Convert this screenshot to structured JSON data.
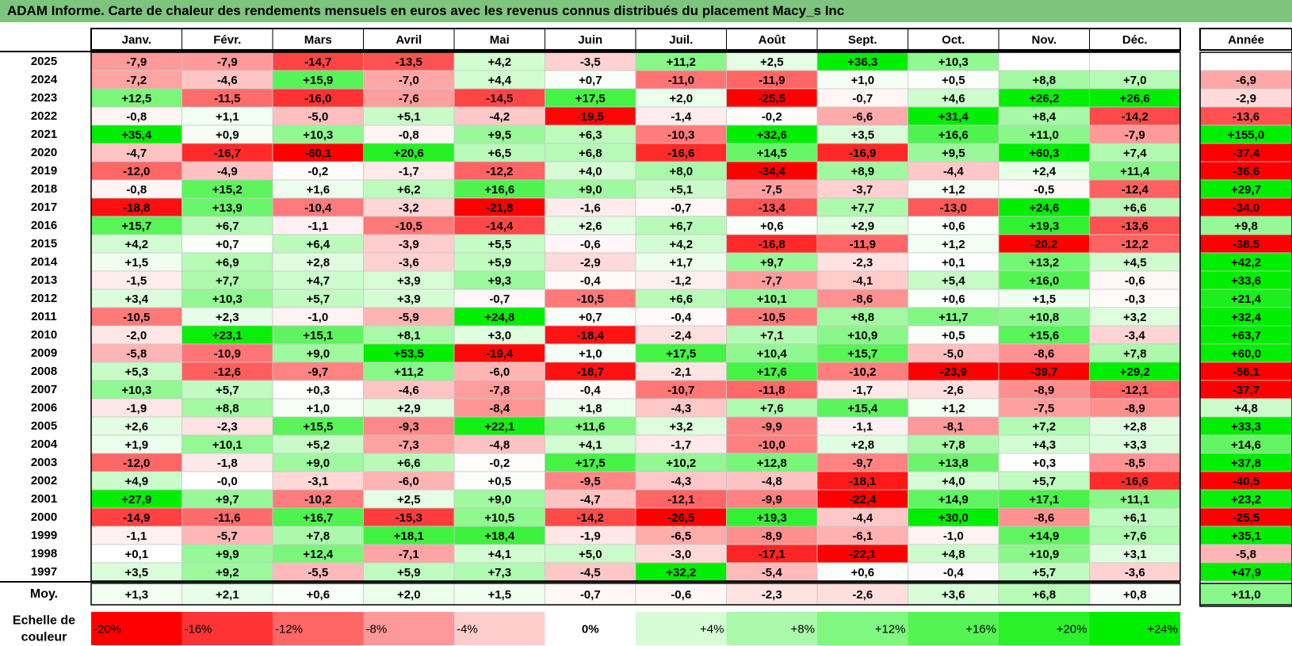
{
  "title": "ADAM Informe. Carte de chaleur des rendements mensuels en euros avec les revenus connus distribués du placement Macy_s Inc",
  "chart_data": {
    "type": "heatmap",
    "months": [
      "Janv.",
      "Févr.",
      "Mars",
      "Avril",
      "Mai",
      "Juin",
      "Juil.",
      "Août",
      "Sept.",
      "Oct.",
      "Nov.",
      "Déc."
    ],
    "year_header": "Année",
    "rows": [
      {
        "year": "2025",
        "values": [
          "-7,9",
          "-7,9",
          "-14,7",
          "-13,5",
          "+4,2",
          "-3,5",
          "+11,2",
          "+2,5",
          "+36,3",
          "+10,3",
          "",
          ""
        ],
        "annual": ""
      },
      {
        "year": "2024",
        "values": [
          "-7,2",
          "-4,6",
          "+15,9",
          "-7,0",
          "+4,4",
          "+0,7",
          "-11,0",
          "-11,9",
          "+1,0",
          "+0,5",
          "+8,8",
          "+7,0"
        ],
        "annual": "-6,9"
      },
      {
        "year": "2023",
        "values": [
          "+12,5",
          "-11,5",
          "-16,0",
          "-7,6",
          "-14,5",
          "+17,5",
          "+2,0",
          "-25,5",
          "-0,7",
          "+4,6",
          "+26,2",
          "+26,6"
        ],
        "annual": "-2,9"
      },
      {
        "year": "2022",
        "values": [
          "-0,8",
          "+1,1",
          "-5,0",
          "+5,1",
          "-4,2",
          "-19,5",
          "-1,4",
          "-0,2",
          "-6,6",
          "+31,4",
          "+8,4",
          "-14,2"
        ],
        "annual": "-13,6"
      },
      {
        "year": "2021",
        "values": [
          "+35,4",
          "+0,9",
          "+10,3",
          "-0,8",
          "+9,5",
          "+6,3",
          "-10,3",
          "+32,6",
          "+3,5",
          "+16,6",
          "+11,0",
          "-7,9"
        ],
        "annual": "+155,0"
      },
      {
        "year": "2020",
        "values": [
          "-4,7",
          "-16,7",
          "-60,1",
          "+20,6",
          "+6,5",
          "+6,8",
          "-16,6",
          "+14,5",
          "-16,9",
          "+9,5",
          "+60,3",
          "+7,4"
        ],
        "annual": "-37,4"
      },
      {
        "year": "2019",
        "values": [
          "-12,0",
          "-4,9",
          "-0,2",
          "-1,7",
          "-12,2",
          "+4,0",
          "+8,0",
          "-34,4",
          "+8,9",
          "-4,4",
          "+2,4",
          "+11,4"
        ],
        "annual": "-36,6"
      },
      {
        "year": "2018",
        "values": [
          "-0,8",
          "+15,2",
          "+1,6",
          "+6,2",
          "+16,6",
          "+9,0",
          "+5,1",
          "-7,5",
          "-3,7",
          "+1,2",
          "-0,5",
          "-12,4"
        ],
        "annual": "+29,7"
      },
      {
        "year": "2017",
        "values": [
          "-18,8",
          "+13,9",
          "-10,4",
          "-3,2",
          "-21,8",
          "-1,6",
          "-0,7",
          "-13,4",
          "+7,7",
          "-13,0",
          "+24,6",
          "+6,6"
        ],
        "annual": "-34,0"
      },
      {
        "year": "2016",
        "values": [
          "+15,7",
          "+6,7",
          "-1,1",
          "-10,5",
          "-14,4",
          "+2,6",
          "+6,7",
          "+0,6",
          "+2,9",
          "+0,6",
          "+19,3",
          "-13,6"
        ],
        "annual": "+9,8"
      },
      {
        "year": "2015",
        "values": [
          "+4,2",
          "+0,7",
          "+6,4",
          "-3,9",
          "+5,5",
          "-0,6",
          "+4,2",
          "-16,8",
          "-11,9",
          "+1,2",
          "-20,2",
          "-12,2"
        ],
        "annual": "-38,5"
      },
      {
        "year": "2014",
        "values": [
          "+1,5",
          "+6,9",
          "+2,8",
          "-3,6",
          "+5,9",
          "-2,9",
          "+1,7",
          "+9,7",
          "-2,3",
          "+0,1",
          "+13,2",
          "+4,5"
        ],
        "annual": "+42,2"
      },
      {
        "year": "2013",
        "values": [
          "-1,5",
          "+7,7",
          "+4,7",
          "+3,9",
          "+9,3",
          "-0,4",
          "-1,2",
          "-7,7",
          "-4,1",
          "+5,4",
          "+16,0",
          "-0,6"
        ],
        "annual": "+33,6"
      },
      {
        "year": "2012",
        "values": [
          "+3,4",
          "+10,3",
          "+5,7",
          "+3,9",
          "-0,7",
          "-10,5",
          "+6,6",
          "+10,1",
          "-8,6",
          "+0,6",
          "+1,5",
          "-0,3"
        ],
        "annual": "+21,4"
      },
      {
        "year": "2011",
        "values": [
          "-10,5",
          "+2,3",
          "-1,0",
          "-5,9",
          "+24,8",
          "+0,7",
          "-0,4",
          "-10,5",
          "+8,8",
          "+11,7",
          "+10,8",
          "+3,2"
        ],
        "annual": "+32,4"
      },
      {
        "year": "2010",
        "values": [
          "-2,0",
          "+23,1",
          "+15,1",
          "+8,1",
          "+3,0",
          "-18,4",
          "-2,4",
          "+7,1",
          "+10,9",
          "+0,5",
          "+15,6",
          "-3,4"
        ],
        "annual": "+63,7"
      },
      {
        "year": "2009",
        "values": [
          "-5,8",
          "-10,9",
          "+9,0",
          "+53,5",
          "-19,4",
          "+1,0",
          "+17,5",
          "+10,4",
          "+15,7",
          "-5,0",
          "-8,6",
          "+7,8"
        ],
        "annual": "+60,0"
      },
      {
        "year": "2008",
        "values": [
          "+5,3",
          "-12,6",
          "-9,7",
          "+11,2",
          "-6,0",
          "-18,7",
          "-2,1",
          "+17,6",
          "-10,2",
          "-23,9",
          "-39,7",
          "+29,2"
        ],
        "annual": "-56,1"
      },
      {
        "year": "2007",
        "values": [
          "+10,3",
          "+5,7",
          "+0,3",
          "-4,6",
          "-7,8",
          "-0,4",
          "-10,7",
          "-11,8",
          "-1,7",
          "-2,6",
          "-8,9",
          "-12,1"
        ],
        "annual": "-37,7"
      },
      {
        "year": "2006",
        "values": [
          "-1,9",
          "+8,8",
          "+1,0",
          "+2,9",
          "-8,4",
          "+1,8",
          "-4,3",
          "+7,6",
          "+15,4",
          "+1,2",
          "-7,5",
          "-8,9"
        ],
        "annual": "+4,8"
      },
      {
        "year": "2005",
        "values": [
          "+2,6",
          "-2,3",
          "+15,5",
          "-9,3",
          "+22,1",
          "+11,6",
          "+3,2",
          "-9,9",
          "-1,1",
          "-8,1",
          "+7,2",
          "+2,8"
        ],
        "annual": "+33,3"
      },
      {
        "year": "2004",
        "values": [
          "+1,9",
          "+10,1",
          "+5,2",
          "-7,3",
          "-4,8",
          "+4,1",
          "-1,7",
          "-10,0",
          "+2,8",
          "+7,8",
          "+4,3",
          "+3,3"
        ],
        "annual": "+14,6"
      },
      {
        "year": "2003",
        "values": [
          "-12,0",
          "-1,8",
          "+9,0",
          "+6,6",
          "-0,2",
          "+17,5",
          "+10,2",
          "+12,8",
          "-9,7",
          "+13,8",
          "+0,3",
          "-8,5"
        ],
        "annual": "+37,8"
      },
      {
        "year": "2002",
        "values": [
          "+4,9",
          "-0,0",
          "-3,1",
          "-6,0",
          "+0,5",
          "-9,5",
          "-4,3",
          "-4,8",
          "-18,1",
          "+4,0",
          "+5,7",
          "-16,6"
        ],
        "annual": "-40,5"
      },
      {
        "year": "2001",
        "values": [
          "+27,9",
          "+9,7",
          "-10,2",
          "+2,5",
          "+9,0",
          "-4,7",
          "-12,1",
          "-9,9",
          "-22,4",
          "+14,9",
          "+17,1",
          "+11,1"
        ],
        "annual": "+23,2"
      },
      {
        "year": "2000",
        "values": [
          "-14,9",
          "-11,6",
          "+16,7",
          "-15,3",
          "+10,5",
          "-14,2",
          "-26,5",
          "+19,3",
          "-4,4",
          "+30,0",
          "-8,6",
          "+6,1"
        ],
        "annual": "-25,5"
      },
      {
        "year": "1999",
        "values": [
          "-1,1",
          "-5,7",
          "+7,8",
          "+18,1",
          "+18,4",
          "-1,9",
          "-6,5",
          "-8,9",
          "-6,1",
          "-1,0",
          "+14,9",
          "+7,6"
        ],
        "annual": "+35,1"
      },
      {
        "year": "1998",
        "values": [
          "+0,1",
          "+9,9",
          "+12,4",
          "-7,1",
          "+4,1",
          "+5,0",
          "-3,0",
          "-17,1",
          "-22,1",
          "+4,8",
          "+10,9",
          "+3,1"
        ],
        "annual": "-5,8"
      },
      {
        "year": "1997",
        "values": [
          "+3,5",
          "+9,2",
          "-5,5",
          "+5,9",
          "+7,3",
          "-4,5",
          "+32,2",
          "-5,4",
          "+0,6",
          "-0,4",
          "+5,7",
          "-3,6"
        ],
        "annual": "+47,9"
      }
    ],
    "average": {
      "label": "Moy.",
      "values": [
        "+1,3",
        "+2,1",
        "+0,6",
        "+2,0",
        "+1,5",
        "-0,7",
        "-0,6",
        "-2,3",
        "-2,6",
        "+3,6",
        "+6,8",
        "+0,8"
      ],
      "annual": "+11,0"
    },
    "legend": {
      "label_line1": "Echelle de",
      "label_line2": "couleur",
      "items": [
        {
          "label": "-20%",
          "value": -20
        },
        {
          "label": "-16%",
          "value": -16
        },
        {
          "label": "-12%",
          "value": -12
        },
        {
          "label": "-8%",
          "value": -8
        },
        {
          "label": "-4%",
          "value": -4
        },
        {
          "label": "0%",
          "value": 0
        },
        {
          "label": "+4%",
          "value": 4
        },
        {
          "label": "+8%",
          "value": 8
        },
        {
          "label": "+12%",
          "value": 12
        },
        {
          "label": "+16%",
          "value": 16
        },
        {
          "label": "+20%",
          "value": 20
        },
        {
          "label": "+24%",
          "value": 24
        }
      ]
    },
    "color_scale": {
      "negative_max": "#ff0000",
      "neutral": "#ffffff",
      "positive_max": "#00ee00",
      "clamp_negative": -20,
      "clamp_positive": 24
    }
  }
}
